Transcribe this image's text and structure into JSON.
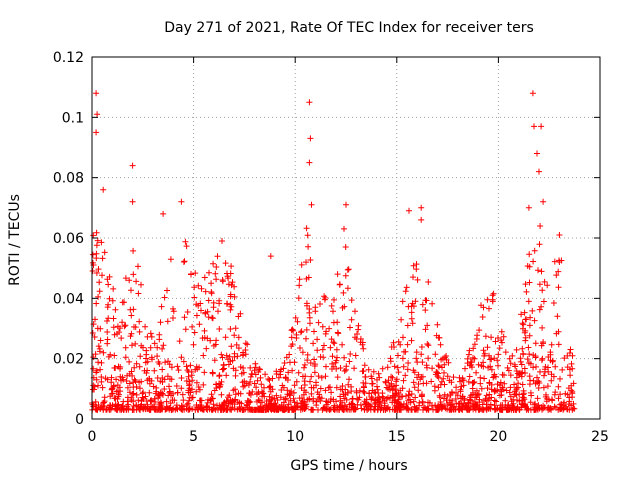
{
  "chart_data": {
    "type": "scatter",
    "title": "Day 271 of 2021, Rate Of TEC Index for receiver ters",
    "xlabel": "GPS time / hours",
    "ylabel": "ROTI / TECUs",
    "xlim": [
      0,
      25
    ],
    "ylim": [
      0,
      0.12
    ],
    "x_ticks": [
      0,
      5,
      10,
      15,
      20,
      25
    ],
    "y_ticks": [
      0,
      0.02,
      0.04,
      0.06,
      0.08,
      0.1,
      0.12
    ],
    "x_tick_labels": [
      "0",
      "5",
      "10",
      "15",
      "20",
      "25"
    ],
    "y_tick_labels": [
      "0",
      "0.02",
      "0.04",
      "0.06",
      "0.08",
      "0.1",
      "0.12"
    ],
    "grid": true,
    "marker": "+",
    "color": "#ff0000",
    "x_data_range": [
      0,
      23.75
    ],
    "points_summary": "dense scatter of ROTI values, mostly 0.002-0.03, with peaks near x=0.2 (0.108), x=2 (0.084), x=4.4 (0.072), x=10.7 (0.105), x=12.4 (0.07), x=16.2 (0.07), x=21.7 (0.108), x=22.1 (0.097)",
    "peaks": [
      {
        "x": 0.2,
        "y": 0.108
      },
      {
        "x": 0.25,
        "y": 0.101
      },
      {
        "x": 0.2,
        "y": 0.095
      },
      {
        "x": 0.55,
        "y": 0.076
      },
      {
        "x": 2.0,
        "y": 0.084
      },
      {
        "x": 2.0,
        "y": 0.072
      },
      {
        "x": 3.5,
        "y": 0.068
      },
      {
        "x": 4.4,
        "y": 0.072
      },
      {
        "x": 6.4,
        "y": 0.059
      },
      {
        "x": 8.8,
        "y": 0.054
      },
      {
        "x": 10.7,
        "y": 0.105
      },
      {
        "x": 10.75,
        "y": 0.093
      },
      {
        "x": 10.7,
        "y": 0.085
      },
      {
        "x": 10.8,
        "y": 0.071
      },
      {
        "x": 12.5,
        "y": 0.071
      },
      {
        "x": 12.4,
        "y": 0.063
      },
      {
        "x": 15.6,
        "y": 0.069
      },
      {
        "x": 16.2,
        "y": 0.07
      },
      {
        "x": 16.2,
        "y": 0.066
      },
      {
        "x": 21.7,
        "y": 0.108
      },
      {
        "x": 21.75,
        "y": 0.097
      },
      {
        "x": 22.1,
        "y": 0.097
      },
      {
        "x": 21.9,
        "y": 0.088
      },
      {
        "x": 22.0,
        "y": 0.082
      },
      {
        "x": 22.2,
        "y": 0.072
      },
      {
        "x": 21.5,
        "y": 0.07
      },
      {
        "x": 23.0,
        "y": 0.061
      }
    ]
  }
}
